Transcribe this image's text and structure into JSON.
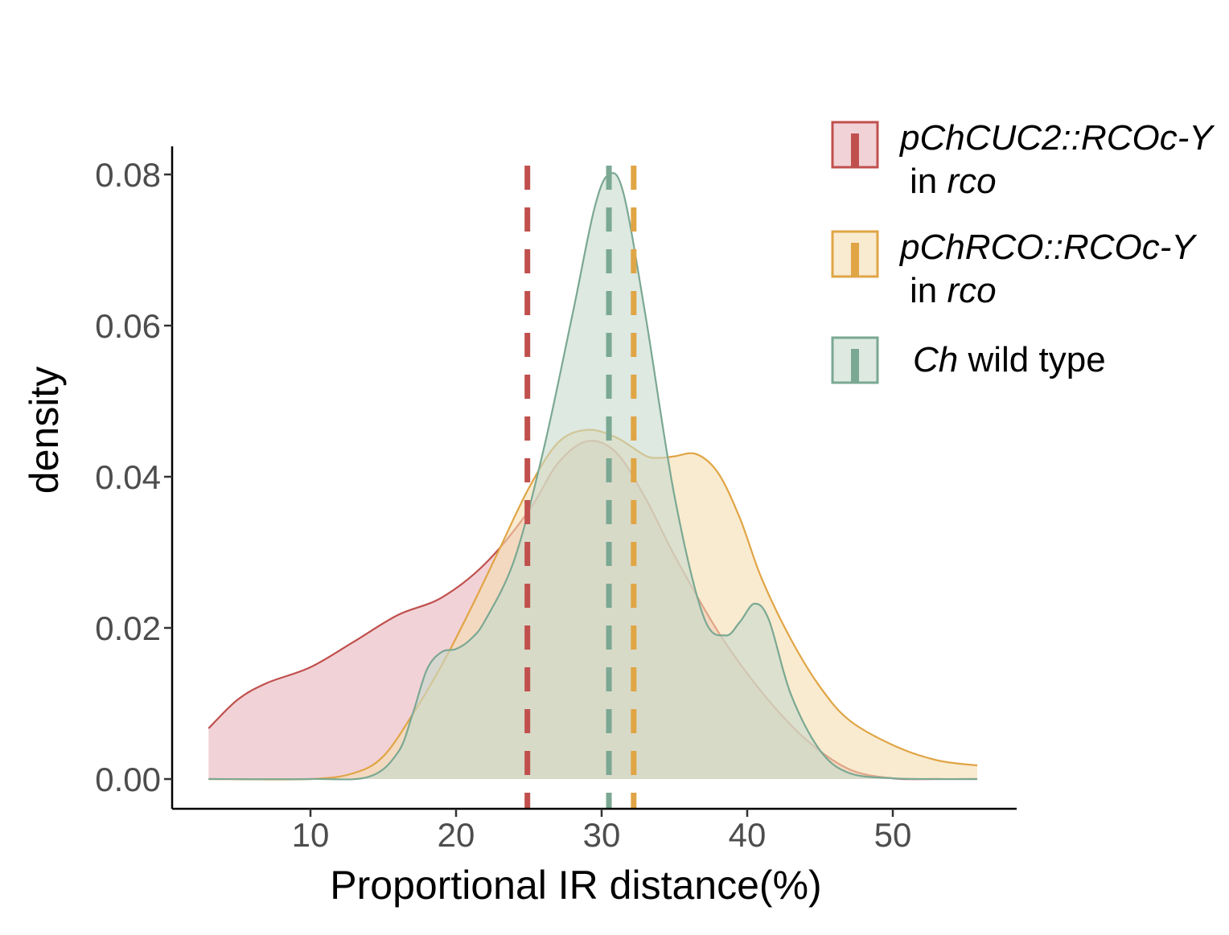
{
  "chart_data": {
    "type": "area",
    "xlabel": "Proportional IR distance(%)",
    "ylabel": "density",
    "xlim": [
      3.0,
      55.8
    ],
    "ylim": [
      0.0,
      0.08
    ],
    "x_ticks": [
      "10",
      "20",
      "30",
      "40",
      "50"
    ],
    "y_ticks": [
      "0.00",
      "0.02",
      "0.04",
      "0.06",
      "0.08"
    ],
    "grid": false,
    "legend_position": "right",
    "series": [
      {
        "legend_line1": "pChCUC2::RCOc-Y",
        "legend_line2_prefix": "in ",
        "legend_line2_italic": "rco",
        "line_color": "#c0504d",
        "fill_color": "#e8b4bd",
        "mean": 24.9,
        "x": [
          3.0,
          5,
          7,
          10,
          13,
          16,
          19,
          22,
          25,
          27,
          29,
          31,
          33,
          35,
          38,
          41,
          44,
          47,
          50,
          53,
          55.8
        ],
        "y": [
          0.0067,
          0.0105,
          0.0127,
          0.0148,
          0.0182,
          0.0217,
          0.024,
          0.0285,
          0.0355,
          0.0418,
          0.0447,
          0.0432,
          0.0372,
          0.0296,
          0.0195,
          0.0115,
          0.0053,
          0.0013,
          0.0001,
          0.0,
          0.0
        ]
      },
      {
        "legend_line1": "pChRCO::RCOc-Y",
        "legend_line2_prefix": "in ",
        "legend_line2_italic": "rco",
        "line_color": "#e0a545",
        "fill_color": "#f5ddb0",
        "mean": 32.2,
        "x": [
          3.0,
          10,
          13,
          15,
          17,
          19,
          21,
          23,
          25,
          27,
          29,
          31,
          33,
          34,
          35,
          36.5,
          38,
          39.5,
          41,
          43,
          45,
          47,
          50,
          53,
          55.8
        ],
        "y": [
          0.0,
          0.0,
          0.0008,
          0.003,
          0.0085,
          0.015,
          0.0225,
          0.0305,
          0.0385,
          0.0445,
          0.0462,
          0.0452,
          0.0428,
          0.0425,
          0.0427,
          0.043,
          0.0405,
          0.0345,
          0.0265,
          0.0185,
          0.0122,
          0.0078,
          0.0045,
          0.0025,
          0.0018
        ]
      },
      {
        "legend_line1_italic": "Ch",
        "legend_line1": " wild type",
        "line_color": "#7ba893",
        "fill_color": "#c6dacd",
        "mean": 30.5,
        "x": [
          3.0,
          10,
          14,
          16,
          17,
          18,
          19,
          20,
          21,
          22,
          24,
          26,
          28,
          29.5,
          30.5,
          31.5,
          33,
          35,
          37,
          38.5,
          39.5,
          40.5,
          41.5,
          43,
          45,
          47,
          50,
          53,
          55.8
        ],
        "y": [
          0.0,
          0.0,
          0.0003,
          0.0035,
          0.0085,
          0.0145,
          0.0168,
          0.0172,
          0.0185,
          0.021,
          0.029,
          0.0435,
          0.0615,
          0.0755,
          0.08,
          0.0775,
          0.0615,
          0.0375,
          0.0215,
          0.019,
          0.0208,
          0.0232,
          0.021,
          0.0112,
          0.0038,
          0.0008,
          0.0001,
          0.0,
          0.0
        ]
      }
    ]
  }
}
